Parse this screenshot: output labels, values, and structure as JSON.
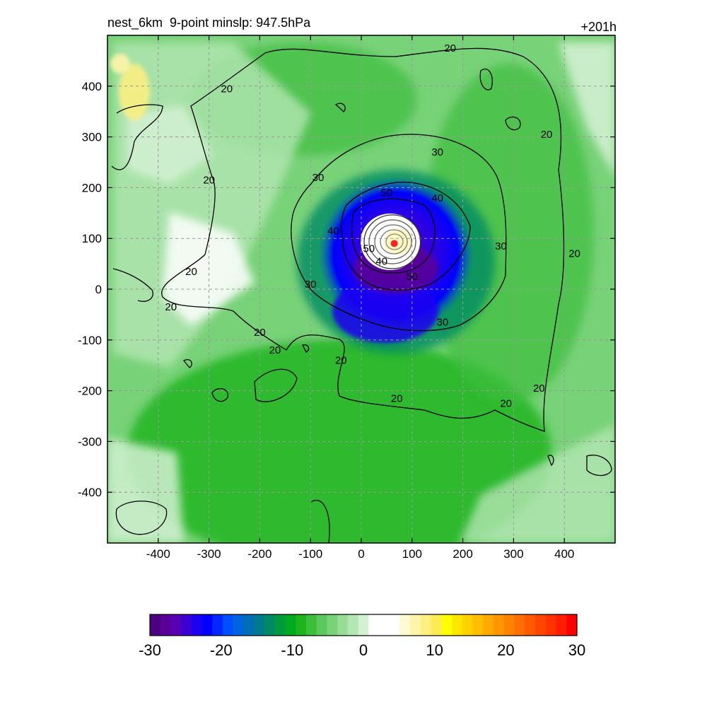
{
  "header": {
    "title": "nest_6km  9-point minslp: 947.5hPa",
    "forecast_hour": "+201h"
  },
  "chart_data": {
    "type": "heatmap",
    "title": "nest_6km  9-point minslp: 947.5hPa",
    "xlim": [
      -500,
      500
    ],
    "ylim": [
      -500,
      500
    ],
    "x_ticks": [
      -400,
      -300,
      -200,
      -100,
      0,
      100,
      200,
      300,
      400
    ],
    "y_ticks": [
      400,
      300,
      200,
      100,
      0,
      -100,
      -200,
      -300,
      -400
    ],
    "grid": true,
    "storm_center": {
      "x": 65,
      "y": 90
    },
    "contour_levels": [
      20,
      30,
      40,
      50,
      60
    ],
    "contour_labels": [
      {
        "text": "20",
        "x": 175,
        "y": 475
      },
      {
        "text": "20",
        "x": -265,
        "y": 395
      },
      {
        "text": "20",
        "x": -300,
        "y": 215
      },
      {
        "text": "20",
        "x": -335,
        "y": 35
      },
      {
        "text": "20",
        "x": -375,
        "y": -35
      },
      {
        "text": "20",
        "x": -200,
        "y": -85
      },
      {
        "text": "20",
        "x": -170,
        "y": -120
      },
      {
        "text": "20",
        "x": -40,
        "y": -140
      },
      {
        "text": "20",
        "x": 70,
        "y": -215
      },
      {
        "text": "20",
        "x": 285,
        "y": -225
      },
      {
        "text": "20",
        "x": 350,
        "y": -195
      },
      {
        "text": "20",
        "x": 420,
        "y": 70
      },
      {
        "text": "20",
        "x": 365,
        "y": 305
      },
      {
        "text": "30",
        "x": 150,
        "y": 270
      },
      {
        "text": "30",
        "x": -85,
        "y": 220
      },
      {
        "text": "30",
        "x": -100,
        "y": 10
      },
      {
        "text": "30",
        "x": 160,
        "y": -65
      },
      {
        "text": "30",
        "x": 275,
        "y": 85
      },
      {
        "text": "40",
        "x": 150,
        "y": 180
      },
      {
        "text": "40",
        "x": -55,
        "y": 115
      },
      {
        "text": "50",
        "x": 50,
        "y": 190
      },
      {
        "text": "50",
        "x": 15,
        "y": 80
      },
      {
        "text": "40",
        "x": 40,
        "y": 55
      },
      {
        "text": "50",
        "x": 100,
        "y": 25
      }
    ],
    "colorbar": {
      "ticks": [
        -30,
        -20,
        -10,
        0,
        10,
        20,
        30
      ],
      "colors": [
        "#4b0082",
        "#5a0096",
        "#5a00b4",
        "#3c00d2",
        "#1e00f0",
        "#0000ff",
        "#0028ff",
        "#0050ff",
        "#0064dc",
        "#006eb4",
        "#007a8c",
        "#008a64",
        "#009a3c",
        "#00aa1e",
        "#1eb41e",
        "#3cbe3c",
        "#5ac85a",
        "#78d278",
        "#96dc96",
        "#b4e6b4",
        "#d2f0d2",
        "#ffffff",
        "#ffffff",
        "#ffffff",
        "#fffad2",
        "#fff5aa",
        "#fff080",
        "#ffeb55",
        "#ffff00",
        "#ffe600",
        "#ffd200",
        "#ffbe00",
        "#ffaa00",
        "#ff9600",
        "#ff8200",
        "#ff6e00",
        "#ff5a00",
        "#ff4600",
        "#ff3200",
        "#ff1e00",
        "#ff0000"
      ]
    }
  }
}
